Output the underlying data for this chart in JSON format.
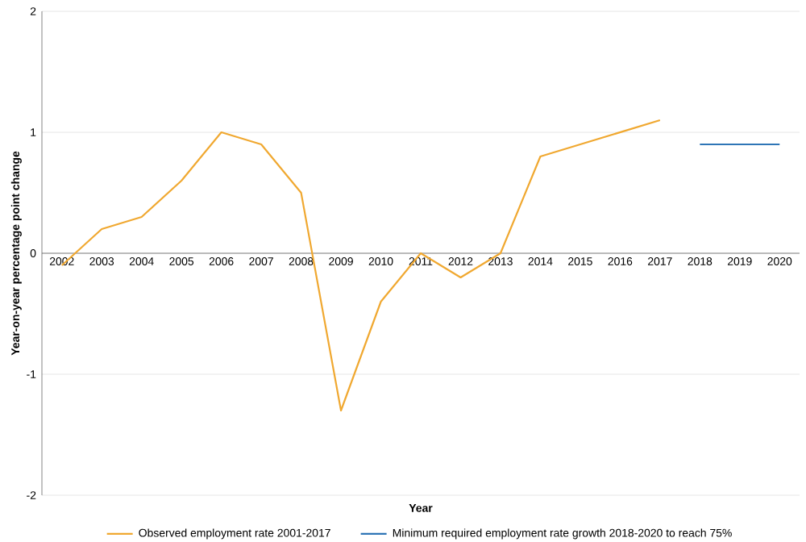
{
  "chart_data": {
    "type": "line",
    "xlabel": "Year",
    "ylabel": "Year-on-year percentage point change",
    "categories": [
      "2002",
      "2003",
      "2004",
      "2005",
      "2006",
      "2007",
      "2008",
      "2009",
      "2010",
      "2011",
      "2012",
      "2013",
      "2014",
      "2015",
      "2016",
      "2017",
      "2018",
      "2019",
      "2020"
    ],
    "series": [
      {
        "name": "Observed employment rate  2001-2017",
        "color": "#f0a830",
        "values": [
          -0.1,
          0.2,
          0.3,
          0.6,
          1.0,
          0.9,
          0.5,
          -1.3,
          -0.4,
          0.0,
          -0.2,
          0.0,
          0.8,
          0.9,
          1.0,
          1.1,
          null,
          null,
          null
        ]
      },
      {
        "name": "Minimum required employment rate growth 2018-2020 to reach 75%",
        "color": "#2e75b6",
        "values": [
          null,
          null,
          null,
          null,
          null,
          null,
          null,
          null,
          null,
          null,
          null,
          null,
          null,
          null,
          null,
          null,
          0.9,
          0.9,
          0.9
        ]
      }
    ],
    "ylim": [
      -2,
      2
    ],
    "yticks": [
      -2,
      -1,
      0,
      1,
      2
    ],
    "grid": "y",
    "legend": "bottom",
    "marker": "none",
    "line_style": "solid"
  }
}
